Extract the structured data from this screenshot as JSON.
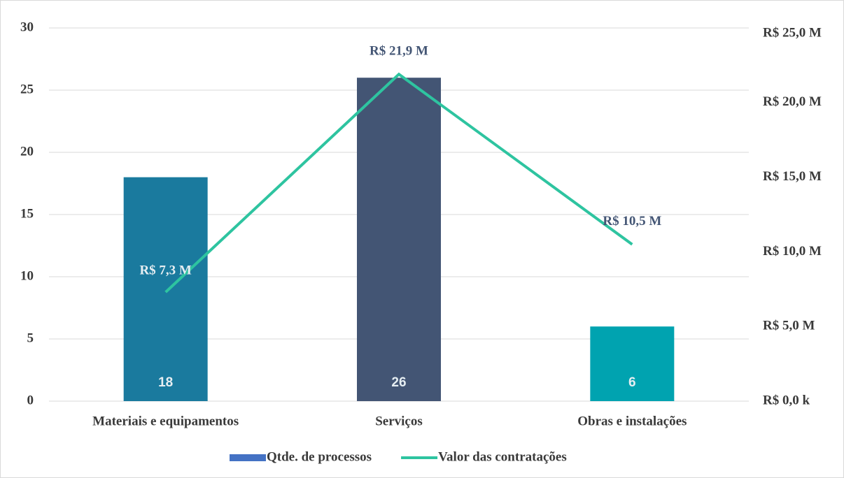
{
  "chart_data": {
    "type": "bar+line",
    "categories": [
      "Materiais e equipamentos",
      "Serviços",
      "Obras e instalações"
    ],
    "series": [
      {
        "name": "Qtde. de processos",
        "type": "bar",
        "color": "#4472c4",
        "colors": [
          "#1a7a9e",
          "#435574",
          "#00a3b0"
        ],
        "values": [
          18,
          26,
          6
        ]
      },
      {
        "name": "Valor das contratações",
        "type": "line",
        "axis": "y2",
        "color": "#2ec4a0",
        "values": [
          7300000,
          21900000,
          10500000
        ],
        "value_labels": [
          "R$ 7,3 M",
          "R$ 21,9 M",
          "R$ 10,5 M"
        ]
      }
    ],
    "ylim": [
      0,
      30
    ],
    "yticks": [
      0,
      5,
      10,
      15,
      20,
      25,
      30
    ],
    "y2lim": [
      0,
      25000000
    ],
    "y2ticks": [
      {
        "value": 0,
        "label": "R$ 0,0 k"
      },
      {
        "value": 5000000,
        "label": "R$ 5,0 M"
      },
      {
        "value": 10000000,
        "label": "R$ 10,0 M"
      },
      {
        "value": 15000000,
        "label": "R$ 15,0 M"
      },
      {
        "value": 20000000,
        "label": "R$ 20,0 M"
      },
      {
        "value": 25000000,
        "label": "R$ 25,0 M"
      }
    ],
    "grid": true,
    "legend": "bottom"
  }
}
